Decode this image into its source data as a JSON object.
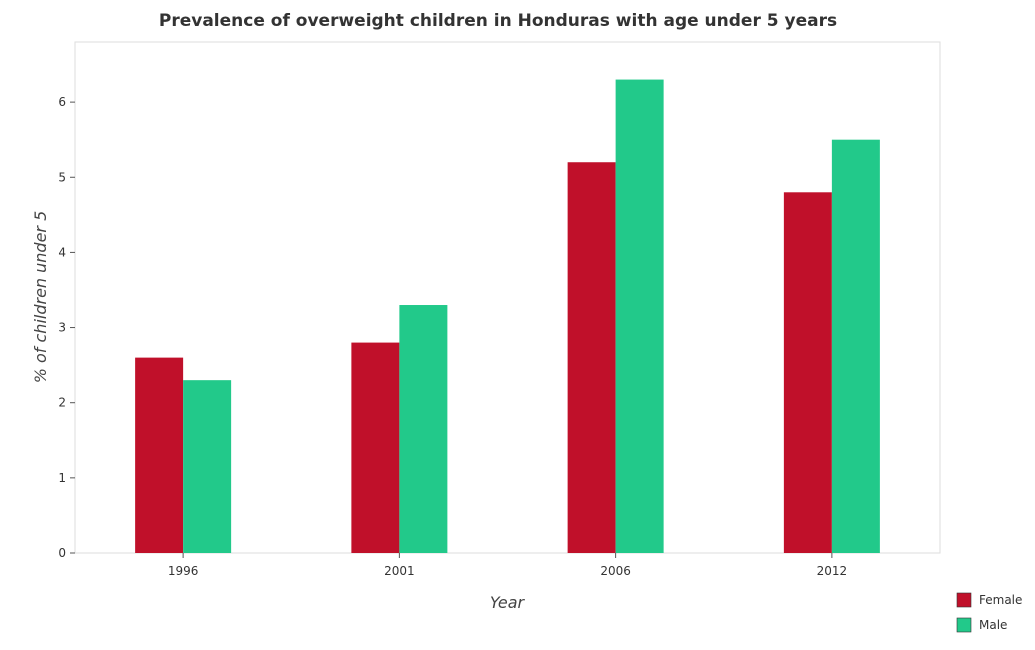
{
  "chart_data": {
    "type": "bar",
    "title": "Prevalence of overweight children in Honduras with age under 5 years",
    "xlabel": "Year",
    "ylabel": "% of children under 5",
    "categories": [
      "1996",
      "2001",
      "2006",
      "2012"
    ],
    "series": [
      {
        "name": "Female",
        "color": "#c0102a",
        "values": [
          2.6,
          2.8,
          5.2,
          4.8
        ]
      },
      {
        "name": "Male",
        "color": "#22c98a",
        "values": [
          2.3,
          3.3,
          6.3,
          5.5
        ]
      }
    ],
    "ylim": [
      0,
      6.8
    ],
    "yticks": [
      0,
      1,
      2,
      3,
      4,
      5,
      6
    ],
    "ytick_labels": [
      "0",
      "1",
      "2",
      "3",
      "4",
      "5",
      "6"
    ],
    "legend": "bottom-right",
    "grid": false
  }
}
